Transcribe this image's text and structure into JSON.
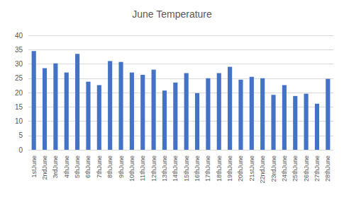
{
  "chart_data": {
    "type": "bar",
    "title": "June Temperature",
    "categories": [
      "1stJune",
      "2ndJune",
      "3rdJune",
      "4thJune",
      "5thJune",
      "6thJune",
      "7thJune",
      "8thJune",
      "9thJune",
      "10thJune",
      "11thJune",
      "12thJune",
      "13thJune",
      "14thJune",
      "15thJune",
      "16thJune",
      "17thJune",
      "18thJune",
      "19thJune",
      "20thJune",
      "21stJune",
      "22ndJune",
      "23rdJune",
      "24thJune",
      "25thJune",
      "26thJune",
      "27thJune",
      "28thJune"
    ],
    "values": [
      34.5,
      28.5,
      30.2,
      27,
      33.5,
      23.8,
      22.6,
      31,
      30.7,
      27,
      26.2,
      28,
      20.7,
      23.5,
      26.8,
      19.8,
      25,
      26.8,
      29,
      24.5,
      25.5,
      25,
      19.2,
      22.6,
      18.8,
      19.6,
      16.1,
      24.8
    ],
    "color": "#4472c4",
    "ylim": [
      0,
      40
    ],
    "yticks": [
      0,
      5,
      10,
      15,
      20,
      25,
      30,
      35,
      40
    ],
    "grid": true
  }
}
